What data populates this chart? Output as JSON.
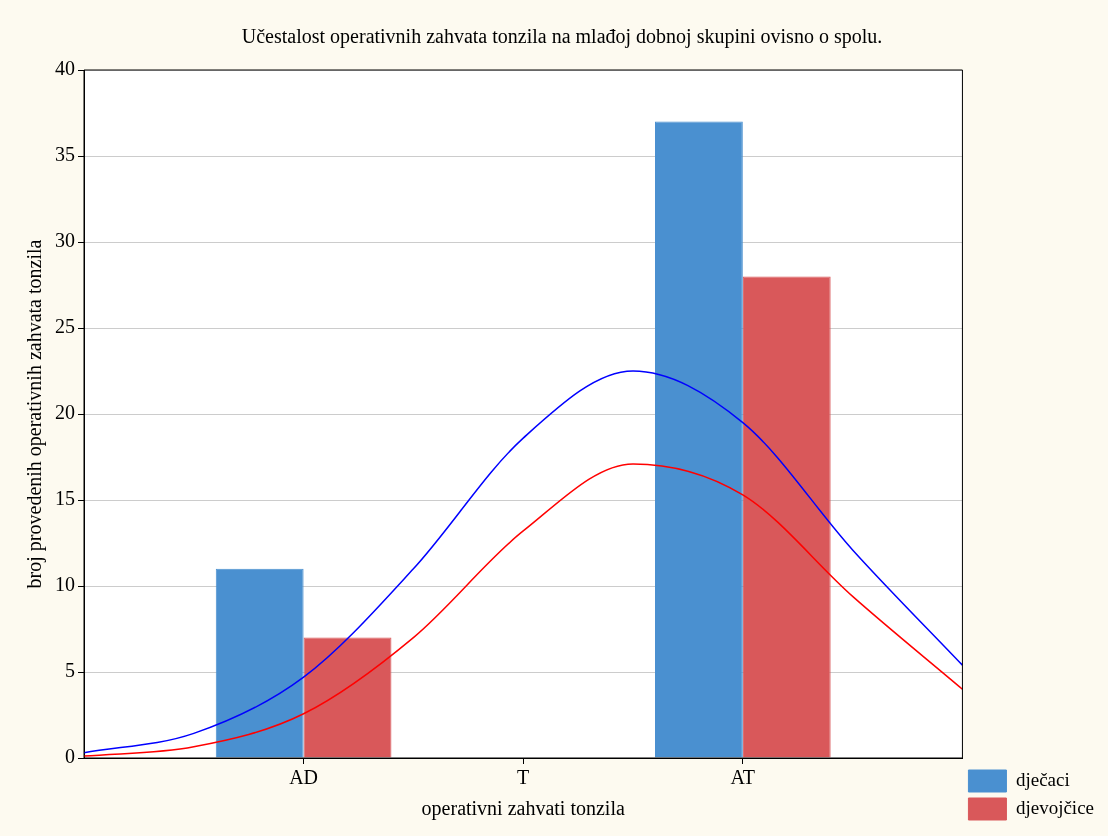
{
  "chart_data": {
    "type": "bar",
    "title": "Učestalost operativnih zahvata tonzila na mlađoj dobnoj skupini ovisno o spolu.",
    "xlabel": "operativni zahvati tonzila",
    "ylabel": "broj provedenih operativnih zahvata tonzila",
    "categories": [
      null,
      null,
      "AD",
      null,
      "T",
      null,
      "AT",
      null,
      null
    ],
    "ylim": [
      0,
      40
    ],
    "yticks": [
      0,
      5,
      10,
      15,
      20,
      25,
      30,
      35,
      40
    ],
    "grid": "y",
    "legend": "bottom right",
    "marker": "none",
    "series": [
      {
        "name": "dječaci",
        "color": "#4a90d0",
        "values": [
          null,
          null,
          11,
          null,
          0,
          null,
          37,
          null,
          null
        ]
      },
      {
        "name": "djevojčice",
        "color": "#d9585a",
        "values": [
          null,
          null,
          7,
          null,
          0,
          null,
          28,
          null,
          null
        ]
      },
      {
        "type": "line",
        "color": "#0000ff",
        "values": [
          0.31,
          1.43,
          4.7,
          11.0,
          18.6,
          22.5,
          19.5,
          12.1,
          5.4
        ]
      },
      {
        "type": "line",
        "color": "#ff0000",
        "values": [
          0.11,
          0.65,
          2.57,
          7.0,
          13.2,
          17.1,
          15.3,
          9.4,
          4.0
        ]
      }
    ]
  }
}
